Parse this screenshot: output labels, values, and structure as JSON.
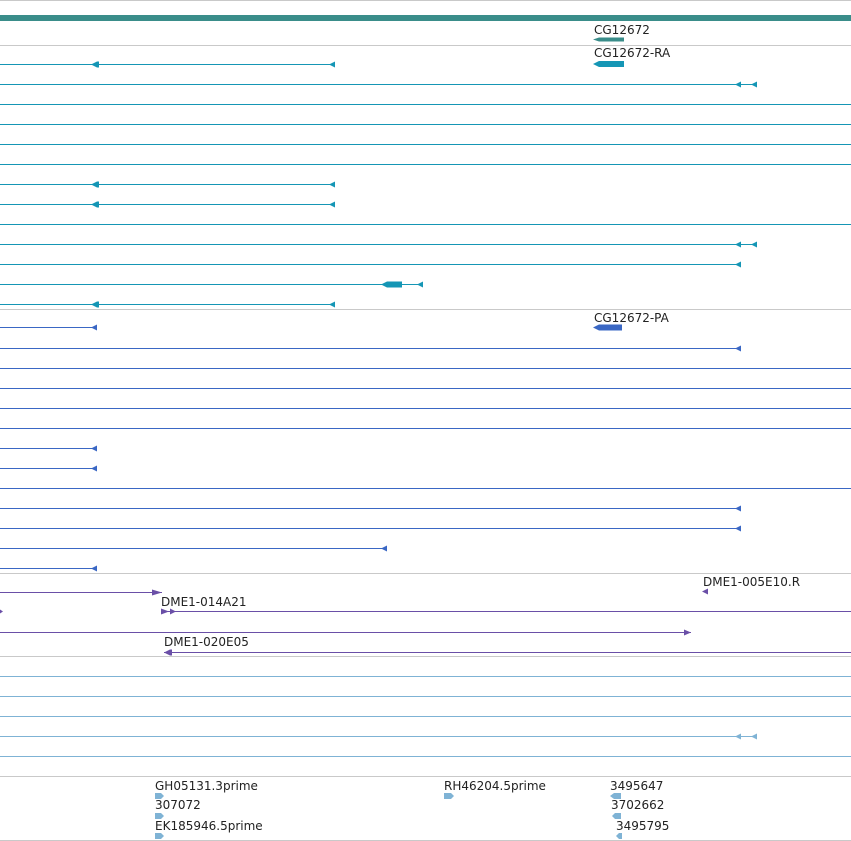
{
  "colors": {
    "gene": "#3a8d8a",
    "mrna": "#1596b5",
    "protein": "#3a67c4",
    "clone": "#6a4fa7",
    "est": "#7fb3d5",
    "separator": "#c9c9c9"
  },
  "tracks": {
    "gene": {
      "label": "CG12672"
    },
    "mrna": {
      "label": "CG12672-RA"
    },
    "protein": {
      "label": "CG12672-PA"
    },
    "clones": {
      "label_1": "DME1-005E10.R",
      "label_2": "DME1-014A21",
      "label_3": "DME1-020E05"
    },
    "est": {
      "labels": [
        "GH05131.3prime",
        "RH46204.5prime",
        "3495647",
        "307072",
        "3702662",
        "EK185946.5prime",
        "3495795"
      ]
    }
  }
}
